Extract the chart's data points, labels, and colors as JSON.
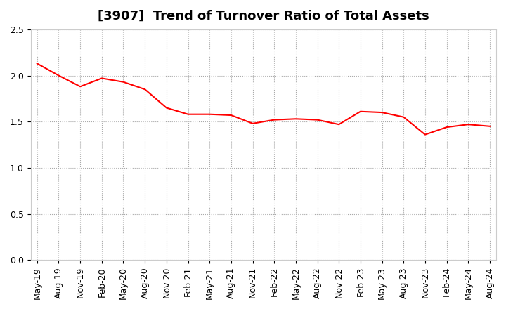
{
  "title": "[3907]  Trend of Turnover Ratio of Total Assets",
  "x_labels": [
    "May-19",
    "Aug-19",
    "Nov-19",
    "Feb-20",
    "May-20",
    "Aug-20",
    "Nov-20",
    "Feb-21",
    "May-21",
    "Aug-21",
    "Nov-21",
    "Feb-22",
    "May-22",
    "Aug-22",
    "Nov-22",
    "Feb-23",
    "May-23",
    "Aug-23",
    "Nov-23",
    "Feb-24",
    "May-24",
    "Aug-24"
  ],
  "values": [
    2.13,
    2.0,
    1.88,
    1.97,
    1.93,
    1.85,
    1.65,
    1.58,
    1.58,
    1.57,
    1.48,
    1.52,
    1.53,
    1.52,
    1.47,
    1.61,
    1.6,
    1.55,
    1.36,
    1.44,
    1.47,
    1.45
  ],
  "line_color": "#FF0000",
  "line_width": 1.5,
  "ylim": [
    0.0,
    2.5
  ],
  "yticks": [
    0.0,
    0.5,
    1.0,
    1.5,
    2.0,
    2.5
  ],
  "grid_color": "#aaaaaa",
  "background_color": "#ffffff",
  "title_fontsize": 13,
  "tick_fontsize": 9
}
